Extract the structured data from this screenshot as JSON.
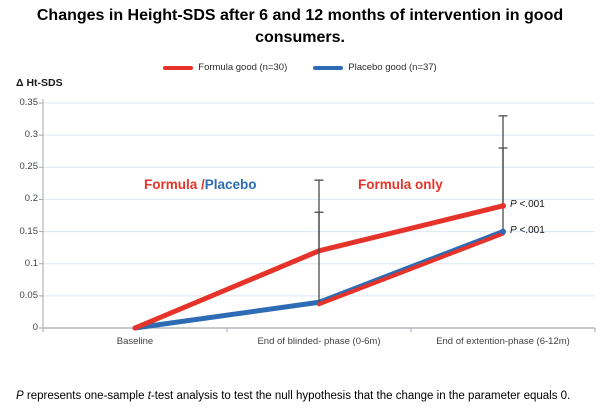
{
  "chart_data": {
    "type": "line",
    "title": "Changes in Height-SDS after 6 and 12 months of intervention in good consumers.",
    "ylabel": "Δ Ht-SDS",
    "xlabel": "",
    "categories": [
      "Baseline",
      "End of blinded- phase (0-6m)",
      "End of extention-phase (6-12m)"
    ],
    "yticks": [
      "0",
      "0.05",
      "0.1",
      "0.15",
      "0.2",
      "0.25",
      "0.3",
      "0.35"
    ],
    "ylim": [
      0,
      0.35
    ],
    "grid": true,
    "legend_position": "top",
    "series": [
      {
        "name": "Formula good (n=30)",
        "color": "#e63329",
        "values": [
          0,
          0.12,
          0.19
        ],
        "error_plus": [
          null,
          0.11,
          0.14
        ]
      },
      {
        "name": "Placebo good (n=37)",
        "color": "#2d6cb5",
        "values": [
          0,
          0.04,
          0.15
        ],
        "error_plus": [
          null,
          0.14,
          0.13
        ]
      }
    ],
    "extension_overlay": {
      "from_index": 1,
      "to_index": 2,
      "description": "Formula-colored line drawn beneath the placebo line during the extension phase"
    },
    "colors": {
      "gridline": "#dce6f2",
      "axis": "#a3a9af",
      "error_bar": "#4a4a4a",
      "tick_text": "#3f3f3f"
    }
  },
  "annotations": {
    "phase1_formula": "Formula",
    "phase1_slash": " /",
    "phase1_placebo": "Placebo",
    "phase2": "Formula only",
    "p_top_symbol": "P",
    "p_top_value": " <.001",
    "p_bottom_symbol": "P",
    "p_bottom_value": " <.001"
  },
  "footnote": {
    "p_symbol": "P",
    "part1": " represents one-sample ",
    "t_symbol": "t",
    "part2": "-test analysis to test the null hypothesis that the change in the parameter equals 0."
  }
}
